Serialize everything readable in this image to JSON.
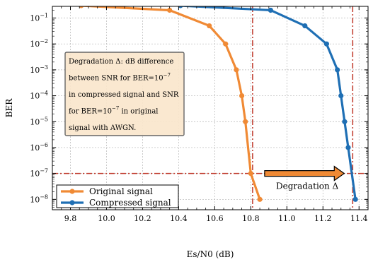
{
  "chart_data": {
    "type": "line",
    "xlabel": "Es/N0 (dB)",
    "ylabel": "BER",
    "xlim": [
      9.7,
      11.45
    ],
    "ylim_exp": [
      -8.4,
      -0.55
    ],
    "y_scale": "log",
    "grid": true,
    "x_ticks": [
      9.8,
      10.0,
      10.2,
      10.4,
      10.6,
      10.8,
      11.0,
      11.2,
      11.4
    ],
    "x_tick_labels": [
      "9.8",
      "10.0",
      "10.2",
      "10.4",
      "10.6",
      "10.8",
      "11.0",
      "11.2",
      "11.4"
    ],
    "y_tick_exps": [
      -1,
      -2,
      -3,
      -4,
      -5,
      -6,
      -7,
      -8
    ],
    "y_tick_labels": [
      "10−1",
      "10−2",
      "10−3",
      "10−4",
      "10−5",
      "10−6",
      "10−7",
      "10−8"
    ],
    "series": [
      {
        "name": "Original signal",
        "color": "#f08a35",
        "x": [
          9.86,
          10.35,
          10.57,
          10.66,
          10.72,
          10.75,
          10.77,
          10.8,
          10.85
        ],
        "y": [
          0.3,
          0.2,
          0.05,
          0.01,
          0.001,
          0.0001,
          1e-05,
          1e-07,
          1e-08
        ]
      },
      {
        "name": "Compressed signal",
        "color": "#1f6fb4",
        "x": [
          10.41,
          10.91,
          11.1,
          11.22,
          11.28,
          11.3,
          11.32,
          11.34,
          11.38
        ],
        "y": [
          0.3,
          0.2,
          0.05,
          0.01,
          0.001,
          0.0001,
          1e-05,
          1e-06,
          1e-08
        ]
      }
    ],
    "reference_lines": {
      "color": "#c0392b",
      "vertical_x": [
        10.81,
        11.365
      ],
      "horizontal_y": 1e-07
    },
    "annotation_box": {
      "lines": [
        "Degradation Δ: dB difference",
        "between SNR for BER=10−7",
        "in compressed signal and SNR",
        "for BER=10−7 in original",
        "signal with AWGN."
      ]
    },
    "arrow": {
      "label": "Degradation Δ",
      "from_x": 10.81,
      "to_x": 11.365,
      "fill": "#f08a35"
    },
    "legend": {
      "position": "lower-left",
      "entries": [
        "Original signal",
        "Compressed signal"
      ]
    }
  }
}
